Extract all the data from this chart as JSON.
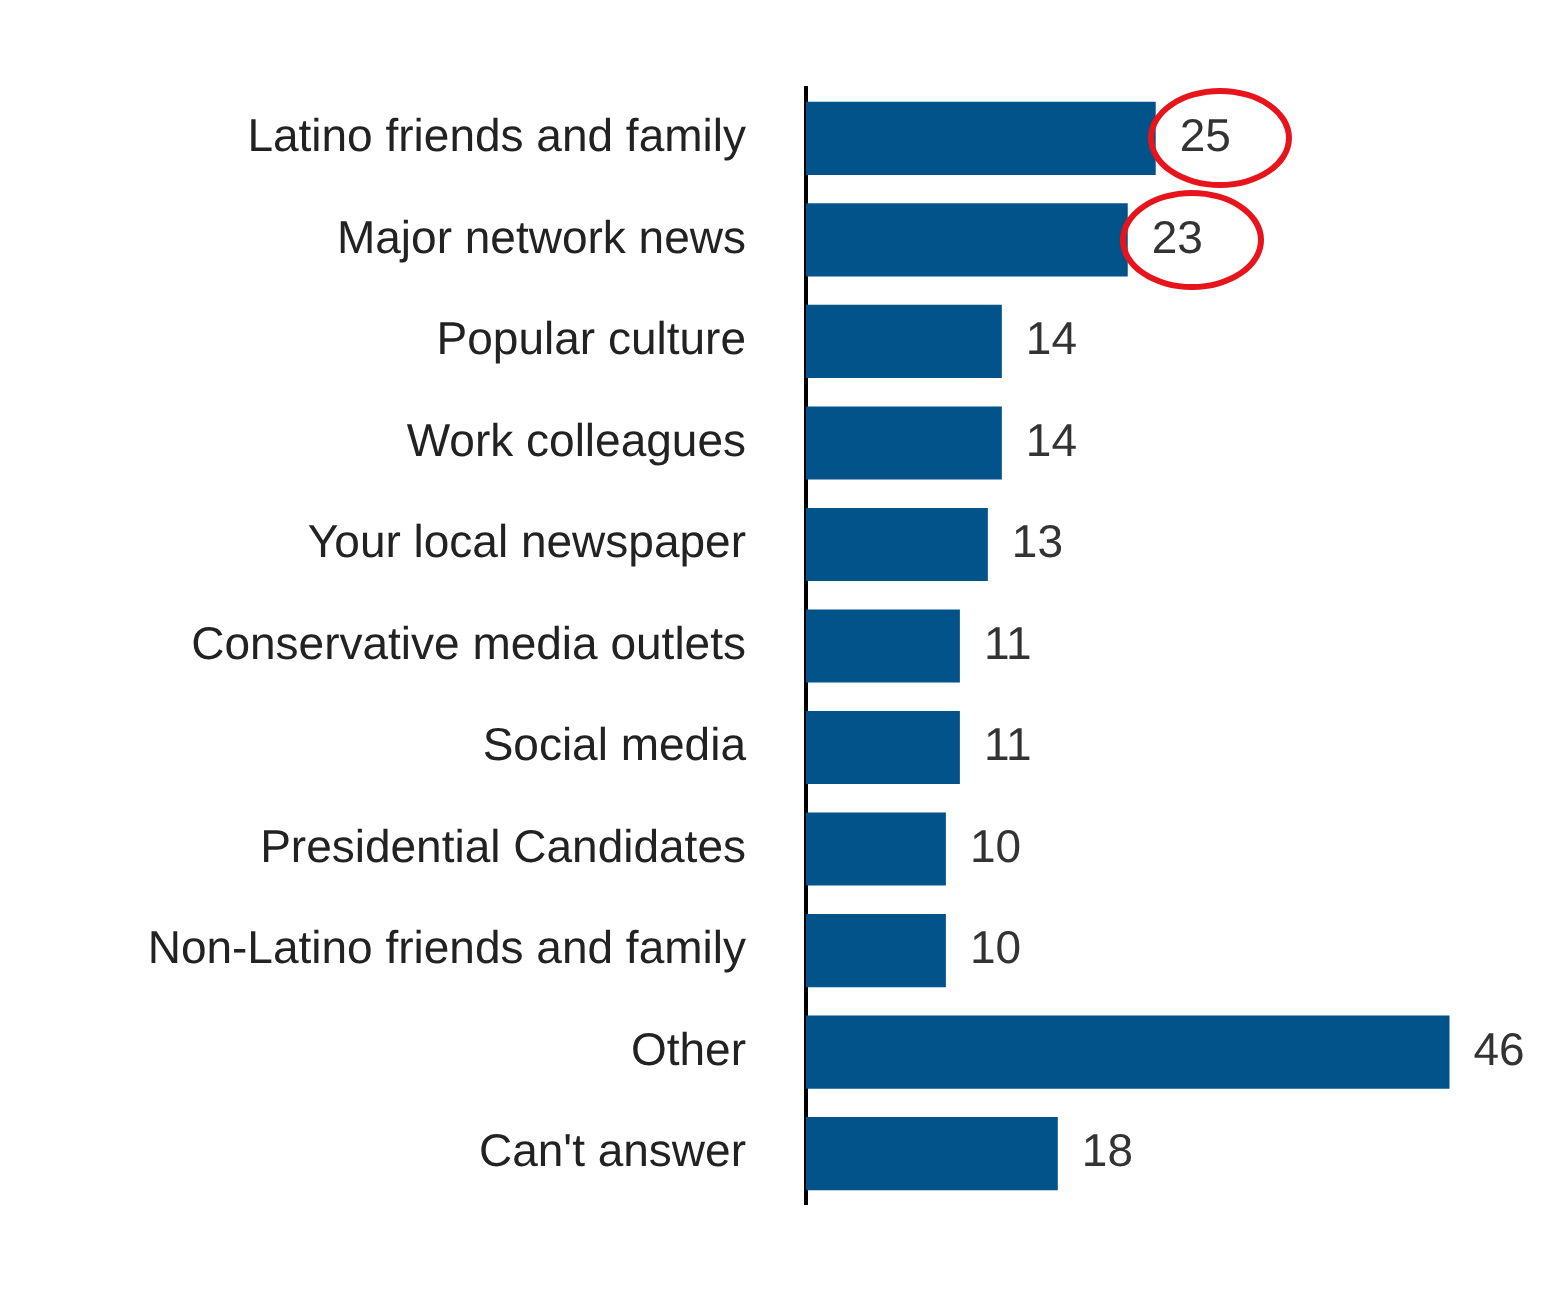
{
  "chart_data": {
    "type": "bar",
    "orientation": "horizontal",
    "categories": [
      "Latino friends and family",
      "Major network news",
      "Popular culture",
      "Work colleagues",
      "Your local newspaper",
      "Conservative media outlets",
      "Social media",
      "Presidential Candidates",
      "Non-Latino friends and family",
      "Other",
      "Can't answer"
    ],
    "values": [
      25,
      23,
      14,
      14,
      13,
      11,
      11,
      10,
      10,
      46,
      18
    ],
    "color": "#02538a",
    "data_labels": true,
    "legend": false
  }
}
